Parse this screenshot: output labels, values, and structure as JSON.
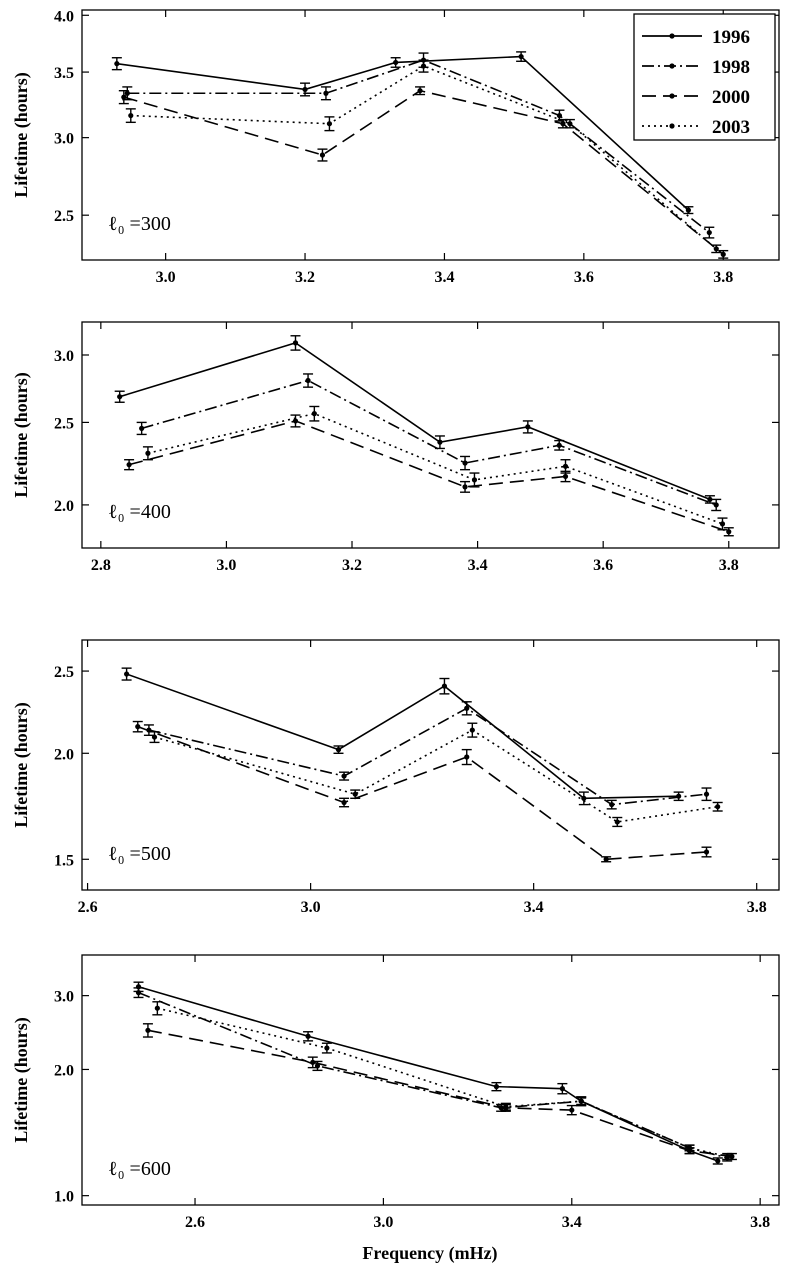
{
  "figure": {
    "xlabel": "Frequency (mHz)",
    "ylabel": "Lifetime (hours)",
    "legend_position": "top-right of first panel",
    "colors": {
      "line": "#000000",
      "background": "#ffffff"
    }
  },
  "legend": [
    "1996",
    "1998",
    "2000",
    "2003"
  ],
  "series_styles": [
    {
      "name": "1996",
      "dash": "solid"
    },
    {
      "name": "1998",
      "dash": "dash-dot"
    },
    {
      "name": "2000",
      "dash": "dashed"
    },
    {
      "name": "2003",
      "dash": "dotted"
    }
  ],
  "chart_data": [
    {
      "type": "line",
      "y_scale": "log",
      "annotation": "ℓ₀ =300",
      "xlim": [
        2.88,
        3.88
      ],
      "ylim": [
        2.25,
        4.05
      ],
      "x_ticks": [
        3.0,
        3.2,
        3.4,
        3.6,
        3.8
      ],
      "x_tick_labels": [
        "3.0",
        "3.2",
        "3.4",
        "3.6",
        "3.8"
      ],
      "y_ticks": [
        2.5,
        3.0,
        3.5,
        4.0
      ],
      "y_tick_labels": [
        "2.5",
        "3.0",
        "3.5",
        "4.0"
      ],
      "series": [
        {
          "name": "1996",
          "x": [
            2.93,
            3.2,
            3.33,
            3.51,
            3.75
          ],
          "y": [
            3.57,
            3.36,
            3.58,
            3.63,
            2.53
          ],
          "err": [
            0.05,
            0.05,
            0.04,
            0.04,
            0.02
          ]
        },
        {
          "name": "1998",
          "x": [
            2.945,
            3.23,
            3.37,
            3.565,
            3.78
          ],
          "y": [
            3.33,
            3.33,
            3.6,
            3.16,
            2.4
          ],
          "err": [
            0.05,
            0.05,
            0.06,
            0.04,
            0.03
          ]
        },
        {
          "name": "2000",
          "x": [
            2.94,
            3.225,
            3.365,
            3.57,
            3.8
          ],
          "y": [
            3.3,
            2.88,
            3.35,
            3.1,
            2.28
          ],
          "err": [
            0.05,
            0.04,
            0.03,
            0.03,
            0.02
          ]
        },
        {
          "name": "2003",
          "x": [
            2.95,
            3.235,
            3.37,
            3.58,
            3.79
          ],
          "y": [
            3.16,
            3.1,
            3.55,
            3.1,
            2.31
          ],
          "err": [
            0.05,
            0.05,
            0.05,
            0.03,
            0.02
          ]
        }
      ]
    },
    {
      "type": "line",
      "y_scale": "log",
      "annotation": "ℓ₀ =400",
      "xlim": [
        2.77,
        3.88
      ],
      "ylim": [
        1.78,
        3.28
      ],
      "x_ticks": [
        2.8,
        3.0,
        3.2,
        3.4,
        3.6,
        3.8
      ],
      "x_tick_labels": [
        "2.8",
        "3.0",
        "3.2",
        "3.4",
        "3.6",
        "3.8"
      ],
      "y_ticks": [
        2.0,
        2.5,
        3.0
      ],
      "y_tick_labels": [
        "2.0",
        "2.5",
        "3.0"
      ],
      "series": [
        {
          "name": "1996",
          "x": [
            2.83,
            3.11,
            3.34,
            3.48,
            3.77
          ],
          "y": [
            2.68,
            3.1,
            2.37,
            2.47,
            2.03
          ],
          "err": [
            0.04,
            0.06,
            0.04,
            0.04,
            0.02
          ]
        },
        {
          "name": "1998",
          "x": [
            2.865,
            3.13,
            3.38,
            3.53,
            3.78
          ],
          "y": [
            2.46,
            2.8,
            2.24,
            2.35,
            2.0
          ],
          "err": [
            0.04,
            0.05,
            0.04,
            0.03,
            0.03
          ]
        },
        {
          "name": "2000",
          "x": [
            2.845,
            3.11,
            3.38,
            3.54,
            3.8
          ],
          "y": [
            2.23,
            2.51,
            2.1,
            2.16,
            1.86
          ],
          "err": [
            0.03,
            0.04,
            0.03,
            0.03,
            0.02
          ]
        },
        {
          "name": "2003",
          "x": [
            2.875,
            3.14,
            3.395,
            3.54,
            3.79
          ],
          "y": [
            2.3,
            2.56,
            2.14,
            2.22,
            1.9
          ],
          "err": [
            0.04,
            0.05,
            0.04,
            0.04,
            0.03
          ]
        }
      ]
    },
    {
      "type": "line",
      "y_scale": "log",
      "annotation": "ℓ₀ =500",
      "xlim": [
        2.59,
        3.84
      ],
      "ylim": [
        1.38,
        2.72
      ],
      "x_ticks": [
        2.6,
        3.0,
        3.4,
        3.8
      ],
      "x_tick_labels": [
        "2.6",
        "3.0",
        "3.4",
        "3.8"
      ],
      "y_ticks": [
        1.5,
        2.0,
        2.5
      ],
      "y_tick_labels": [
        "1.5",
        "2.0",
        "2.5"
      ],
      "series": [
        {
          "name": "1996",
          "x": [
            2.67,
            3.05,
            3.24,
            3.49,
            3.66
          ],
          "y": [
            2.48,
            2.02,
            2.4,
            1.77,
            1.78
          ],
          "err": [
            0.04,
            0.02,
            0.05,
            0.03,
            0.02
          ]
        },
        {
          "name": "1998",
          "x": [
            2.71,
            3.06,
            3.28,
            3.54,
            3.71
          ],
          "y": [
            2.13,
            1.88,
            2.26,
            1.74,
            1.79
          ],
          "err": [
            0.03,
            0.02,
            0.04,
            0.02,
            0.03
          ]
        },
        {
          "name": "2000",
          "x": [
            2.69,
            3.06,
            3.28,
            3.53,
            3.71
          ],
          "y": [
            2.15,
            1.75,
            1.98,
            1.5,
            1.53
          ],
          "err": [
            0.03,
            0.02,
            0.04,
            0.01,
            0.02
          ]
        },
        {
          "name": "2003",
          "x": [
            2.72,
            3.08,
            3.29,
            3.55,
            3.73
          ],
          "y": [
            2.09,
            1.79,
            2.13,
            1.66,
            1.73
          ],
          "err": [
            0.03,
            0.02,
            0.04,
            0.02,
            0.02
          ]
        }
      ]
    },
    {
      "type": "line",
      "y_scale": "log",
      "annotation": "ℓ₀ =600",
      "xlim": [
        2.36,
        3.84
      ],
      "ylim": [
        0.95,
        3.75
      ],
      "x_ticks": [
        2.6,
        3.0,
        3.4,
        3.8
      ],
      "x_tick_labels": [
        "2.6",
        "3.0",
        "3.4",
        "3.8"
      ],
      "y_ticks": [
        1.0,
        2.0,
        3.0
      ],
      "y_tick_labels": [
        "1.0",
        "2.0",
        "3.0"
      ],
      "series": [
        {
          "name": "1996",
          "x": [
            2.48,
            2.84,
            3.24,
            3.38,
            3.42,
            3.65,
            3.71
          ],
          "y": [
            3.15,
            2.4,
            1.82,
            1.8,
            1.68,
            1.28,
            1.21
          ],
          "err": [
            0.08,
            0.06,
            0.04,
            0.05,
            0.03,
            0.02,
            0.02
          ]
        },
        {
          "name": "1998",
          "x": [
            2.48,
            2.86,
            3.25,
            3.42,
            3.65,
            3.73
          ],
          "y": [
            3.05,
            2.04,
            1.62,
            1.68,
            1.3,
            1.23
          ],
          "err": [
            0.08,
            0.05,
            0.03,
            0.04,
            0.02,
            0.02
          ]
        },
        {
          "name": "2000",
          "x": [
            2.5,
            2.85,
            3.26,
            3.4,
            3.65,
            3.74
          ],
          "y": [
            2.48,
            2.08,
            1.62,
            1.6,
            1.28,
            1.24
          ],
          "err": [
            0.09,
            0.06,
            0.03,
            0.04,
            0.02,
            0.02
          ]
        },
        {
          "name": "2003",
          "x": [
            2.52,
            2.88,
            3.26,
            3.42,
            3.65,
            3.73
          ],
          "y": [
            2.8,
            2.25,
            1.63,
            1.68,
            1.3,
            1.24
          ],
          "err": [
            0.1,
            0.06,
            0.03,
            0.04,
            0.02,
            0.02
          ]
        }
      ]
    }
  ]
}
